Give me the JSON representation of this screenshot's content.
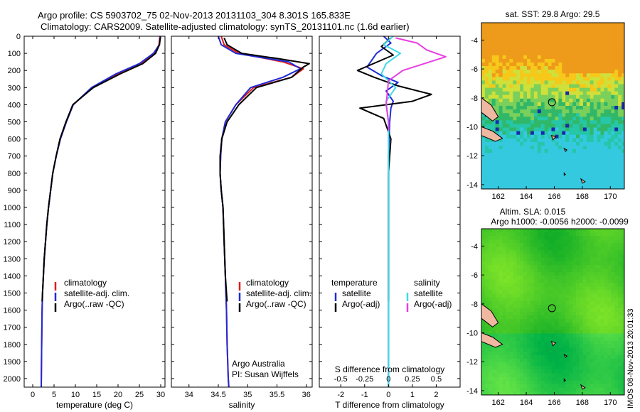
{
  "header": {
    "line1": "Argo profile: CS 5903702_75 02-Nov-2013 20131103_304 8.301S 165.833E",
    "line2": "Climatology: CARS2009. Satellite-adjusted climatology: synTS_20131101.nc (1.6d earlier)"
  },
  "side_stamp": "IMOS 08-Nov-2013 20:01:33",
  "colors": {
    "climatology": "#e41a1c",
    "satellite": "#1f2bd6",
    "argo": "#000000",
    "sat_salinity": "#3fd9e8",
    "argo_salinity": "#e83fe0"
  },
  "chart_data": [
    {
      "type": "line",
      "xlabel": "temperature (deg C)",
      "ylabel": "",
      "xlim": [
        -2,
        31
      ],
      "ylim": [
        2050,
        0
      ],
      "xticks": [
        "0",
        "5",
        "10",
        "15",
        "20",
        "25",
        "30"
      ],
      "yticks": [
        "0",
        "100",
        "200",
        "300",
        "400",
        "500",
        "600",
        "700",
        "800",
        "900",
        "1000",
        "1100",
        "1200",
        "1300",
        "1400",
        "1500",
        "1600",
        "1700",
        "1800",
        "1900",
        "2000"
      ],
      "legend": [
        "climatology",
        "satellite-adj. clim.",
        "Argo(..raw -QC)"
      ],
      "series": [
        {
          "name": "climatology",
          "x": [
            29.8,
            29.6,
            28.5,
            25.5,
            20,
            14,
            9.5,
            7.8,
            6.4,
            5.5,
            4.7,
            4.2,
            3.7,
            3.3,
            3.0,
            2.7,
            2.5,
            2.3,
            2.2,
            2.1,
            2.0
          ],
          "y": [
            0,
            50,
            100,
            160,
            220,
            300,
            400,
            500,
            600,
            700,
            800,
            900,
            1000,
            1100,
            1200,
            1300,
            1400,
            1500,
            1600,
            1800,
            2050
          ]
        },
        {
          "name": "satellite-adj. clim.",
          "x": [
            29.9,
            29.7,
            28.3,
            25,
            19.5,
            13.8,
            9.5,
            7.9,
            6.5,
            5.5,
            4.7,
            4.2,
            3.7,
            3.3,
            3.0,
            2.7,
            2.5,
            2.3,
            2.2,
            2.1,
            2.0
          ],
          "y": [
            0,
            50,
            100,
            160,
            220,
            300,
            400,
            500,
            600,
            700,
            800,
            900,
            1000,
            1100,
            1200,
            1300,
            1400,
            1500,
            1600,
            1800,
            2050
          ]
        },
        {
          "name": "Argo(..raw -QC)",
          "x": [
            29.9,
            29.7,
            28.8,
            25.8,
            20.5,
            14.2,
            9.4,
            7.8,
            6.4,
            5.5,
            4.7,
            4.2,
            3.7,
            3.3,
            3.0,
            2.7,
            2.5,
            2.3,
            2.2
          ],
          "y": [
            10,
            50,
            100,
            160,
            220,
            300,
            400,
            500,
            600,
            700,
            800,
            900,
            1000,
            1100,
            1200,
            1300,
            1400,
            1500,
            1550
          ]
        }
      ]
    },
    {
      "type": "line",
      "xlabel": "salinity",
      "xlim": [
        33.7,
        36.1
      ],
      "ylim": [
        2050,
        0
      ],
      "xticks": [
        "34",
        "34.5",
        "35",
        "35.5",
        "36"
      ],
      "legend": [
        "climatology",
        "satellite-adj. clim.",
        "Argo(..raw -QC)"
      ],
      "annotation": [
        "Argo Australia",
        "PI: Susan Wijffels"
      ],
      "series": [
        {
          "name": "climatology",
          "x": [
            34.55,
            34.6,
            34.85,
            35.6,
            35.95,
            35.75,
            35.1,
            34.8,
            34.62,
            34.56,
            34.54,
            34.53,
            34.55,
            34.58,
            34.6,
            34.62,
            34.64,
            34.65,
            34.66,
            34.67,
            34.68
          ],
          "y": [
            0,
            50,
            100,
            150,
            190,
            240,
            300,
            400,
            500,
            600,
            700,
            800,
            900,
            1000,
            1200,
            1400,
            1600,
            1800,
            1900,
            2000,
            2050
          ]
        },
        {
          "name": "satellite-adj. clim.",
          "x": [
            34.5,
            34.55,
            34.8,
            35.7,
            35.9,
            35.6,
            35.05,
            34.8,
            34.62,
            34.56,
            34.54,
            34.53,
            34.55,
            34.58,
            34.6,
            34.62,
            34.64,
            34.65,
            34.66,
            34.67,
            34.68
          ],
          "y": [
            0,
            50,
            100,
            150,
            190,
            240,
            300,
            400,
            500,
            600,
            700,
            800,
            900,
            1000,
            1200,
            1400,
            1600,
            1800,
            1900,
            2000,
            2050
          ]
        },
        {
          "name": "Argo(..raw -QC)",
          "x": [
            34.6,
            34.65,
            34.9,
            35.5,
            36.05,
            35.95,
            35.75,
            35.15,
            34.85,
            34.65,
            34.56,
            34.53,
            34.53,
            34.55,
            34.58,
            34.6,
            34.62,
            34.64,
            34.65
          ],
          "y": [
            10,
            50,
            100,
            130,
            160,
            180,
            240,
            300,
            400,
            500,
            600,
            700,
            800,
            900,
            1000,
            1200,
            1400,
            1500,
            1550
          ]
        }
      ]
    },
    {
      "type": "line",
      "xlabel": "T difference from climatology",
      "xlabel2": "S difference from climatology",
      "xlim": [
        -2.9,
        3.0
      ],
      "ylim": [
        2050,
        0
      ],
      "xticks": [
        "-2",
        "-1",
        "0",
        "1",
        "2"
      ],
      "xticks_top": [
        "-0.5",
        "-0.25",
        "0",
        "0.25",
        "0.5"
      ],
      "legend_titles": [
        "temperature",
        "salinity"
      ],
      "legend": [
        "satellite",
        "Argo(-adj)",
        "satellite",
        "Argo(-adj)"
      ],
      "series": [
        {
          "name": "satellite",
          "x": [
            -0.2,
            0.1,
            -0.5,
            -0.9,
            -0.3,
            0.4,
            -0.1,
            0.2,
            0.1,
            0.05,
            0.0,
            0.0,
            0.0,
            0.0,
            0.0,
            0.0,
            0.0
          ],
          "y": [
            0,
            40,
            100,
            180,
            230,
            270,
            320,
            380,
            420,
            500,
            700,
            900,
            1200,
            1500,
            1800,
            2000,
            2050
          ]
        },
        {
          "name": "Argo(-adj)",
          "x": [
            0.1,
            -0.3,
            0.2,
            -1.3,
            -0.6,
            0.4,
            1.8,
            1.0,
            -1.2,
            -0.2,
            0.1,
            0.0,
            0.0,
            0.0,
            0.0
          ],
          "y": [
            10,
            60,
            110,
            200,
            240,
            290,
            340,
            380,
            420,
            480,
            600,
            800,
            1100,
            1400,
            1550
          ]
        },
        {
          "name": "satellite",
          "x": [
            0.2,
            -0.2,
            0.5,
            -0.1,
            -0.3,
            0.3,
            -0.1,
            0.0,
            0.0,
            0.0,
            0.0,
            0.0,
            0.0
          ],
          "y": [
            0,
            50,
            100,
            160,
            220,
            300,
            380,
            500,
            700,
            1000,
            1400,
            1800,
            2050
          ]
        },
        {
          "name": "Argo(-adj)",
          "x": [
            0.3,
            1.2,
            1.6,
            2.4,
            1.5,
            0.6,
            0.0,
            -0.1,
            0.0,
            0.0
          ],
          "y": [
            10,
            40,
            80,
            120,
            160,
            200,
            260,
            400,
            500,
            550
          ]
        }
      ]
    },
    {
      "type": "heatmap",
      "title": "sat. SST: 29.8  Argo: 29.5",
      "xlim": [
        160.8,
        171
      ],
      "ylim": [
        -14.3,
        -2.8
      ],
      "xticks": [
        "162",
        "164",
        "166",
        "168",
        "170"
      ],
      "yticks": [
        "-4",
        "-6",
        "-8",
        "-10",
        "-12",
        "-14"
      ],
      "marker": {
        "lon": 165.833,
        "lat": -8.301
      }
    },
    {
      "type": "heatmap",
      "title": "Altim. SLA: 0.015",
      "subtitle": "Argo h1000: -0.0056 h2000: -0.0099",
      "xlim": [
        160.8,
        171
      ],
      "ylim": [
        -14.3,
        -2.8
      ],
      "xticks": [
        "162",
        "164",
        "166",
        "168",
        "170"
      ],
      "yticks": [
        "-4",
        "-6",
        "-8",
        "-10",
        "-12",
        "-14"
      ],
      "marker": {
        "lon": 165.833,
        "lat": -8.301
      }
    }
  ]
}
